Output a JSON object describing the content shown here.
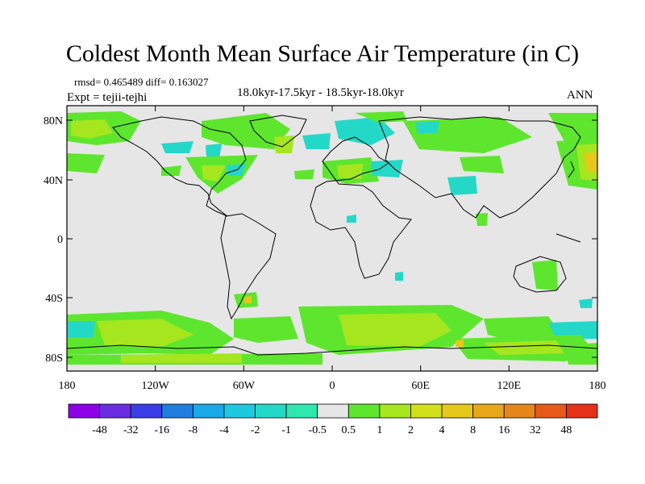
{
  "title": "Coldest Month Mean Surface Air Temperature (in C)",
  "stats": "rmsd= 0.465489 diff= 0.163027",
  "experiment": "Expt = tejii-tejhi",
  "period": "18.0kyr-17.5kyr - 18.5kyr-18.0kyr",
  "season": "ANN",
  "axes": {
    "lat_labels": [
      "80N",
      "40N",
      "0",
      "40S",
      "80S"
    ],
    "lon_labels": [
      "180",
      "120W",
      "60W",
      "0",
      "60E",
      "120E",
      "180"
    ]
  },
  "colorbar": {
    "colors": [
      "#8c00e6",
      "#6a2ee0",
      "#3a3ee6",
      "#1f7ee0",
      "#1aa8e6",
      "#1ec8e0",
      "#24d8c8",
      "#2ee8b0",
      "#e6e6e6",
      "#5ee62e",
      "#a6e61e",
      "#d2e01a",
      "#e6c81a",
      "#e6a81a",
      "#e6861a",
      "#e65a1a",
      "#e6301a"
    ],
    "labels": [
      "-48",
      "-32",
      "-16",
      "-8",
      "-4",
      "-2",
      "-1",
      "-0.5",
      "0.5",
      "1",
      "2",
      "4",
      "8",
      "16",
      "32",
      "48"
    ]
  },
  "map": {
    "background_color": "#e6e6e6",
    "positive_weak_color": "#5ee62e",
    "positive_color": "#a6e61e",
    "positive_moderate_color": "#d2e01a",
    "positive_strong_color": "#e6c81a",
    "negative_weak_color": "#2ee8b0",
    "negative_color": "#24d8c8"
  }
}
